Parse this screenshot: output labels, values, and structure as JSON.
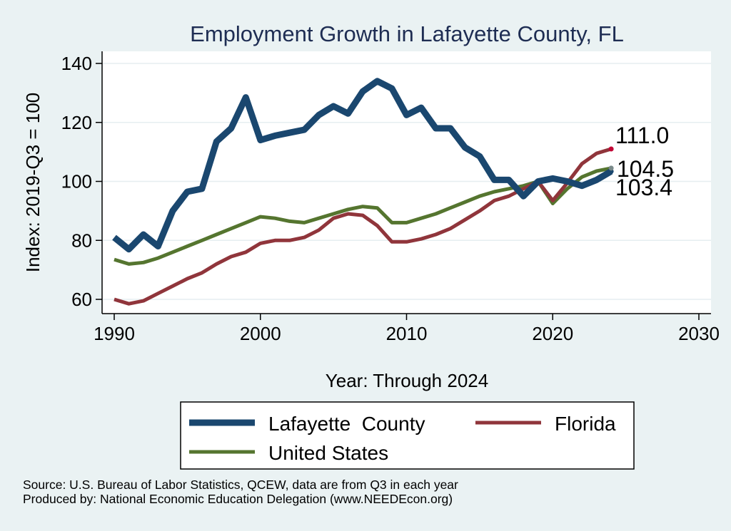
{
  "chart_data": {
    "type": "line",
    "title": "Employment Growth in Lafayette County, FL",
    "xlabel": "Year: Through 2024",
    "ylabel": "Index: 2019-Q3 = 100",
    "xlim": [
      1990,
      2030
    ],
    "ylim": [
      55,
      145
    ],
    "xticks": [
      1990,
      2000,
      2010,
      2020,
      2030
    ],
    "yticks": [
      60,
      80,
      100,
      120,
      140
    ],
    "grid": true,
    "legend_position": "bottom",
    "x": [
      1990,
      1991,
      1992,
      1993,
      1994,
      1995,
      1996,
      1997,
      1998,
      1999,
      2000,
      2001,
      2002,
      2003,
      2004,
      2005,
      2006,
      2007,
      2008,
      2009,
      2010,
      2011,
      2012,
      2013,
      2014,
      2015,
      2016,
      2017,
      2018,
      2019,
      2020,
      2021,
      2022,
      2023,
      2024
    ],
    "series": [
      {
        "name": "Lafayette  County",
        "color": "#1a476f",
        "values": [
          81,
          77,
          82,
          78,
          90,
          96.5,
          97.5,
          113.5,
          118,
          128.5,
          114,
          115.5,
          116.5,
          117.5,
          122.5,
          125.5,
          123,
          130.5,
          134,
          131.5,
          122.5,
          125,
          118,
          118,
          111.5,
          108.5,
          100.5,
          100.5,
          95,
          100,
          101,
          100,
          98.5,
          100.5,
          103.4
        ],
        "end_label": "103.4"
      },
      {
        "name": "Florida",
        "color": "#90353b",
        "values": [
          60,
          58.5,
          59.5,
          62,
          64.5,
          67,
          69,
          72,
          74.5,
          76,
          79,
          80,
          80,
          81,
          83.5,
          87.5,
          89,
          88.5,
          85,
          79.5,
          79.5,
          80.5,
          82,
          84,
          87,
          90,
          93.5,
          95,
          97.5,
          100,
          93.5,
          99.5,
          106,
          109.5,
          111
        ],
        "end_label": "111.0"
      },
      {
        "name": "United States",
        "color": "#55752f",
        "values": [
          73.5,
          72,
          72.5,
          74,
          76,
          78,
          80,
          82,
          84,
          86,
          88,
          87.5,
          86.5,
          86,
          87.5,
          89,
          90.5,
          91.5,
          91,
          86,
          86,
          87.5,
          89,
          91,
          93,
          95,
          96.5,
          97.5,
          98.5,
          100,
          92.5,
          97.5,
          101.5,
          103.5,
          104.5
        ],
        "end_label": "104.5"
      }
    ]
  },
  "footer": {
    "source": "Source: U.S. Bureau of Labor Statistics, QCEW, data are from Q3 in each year",
    "produced_by": "Produced by: National Economic Education Delegation (www.NEEDEcon.org)"
  }
}
